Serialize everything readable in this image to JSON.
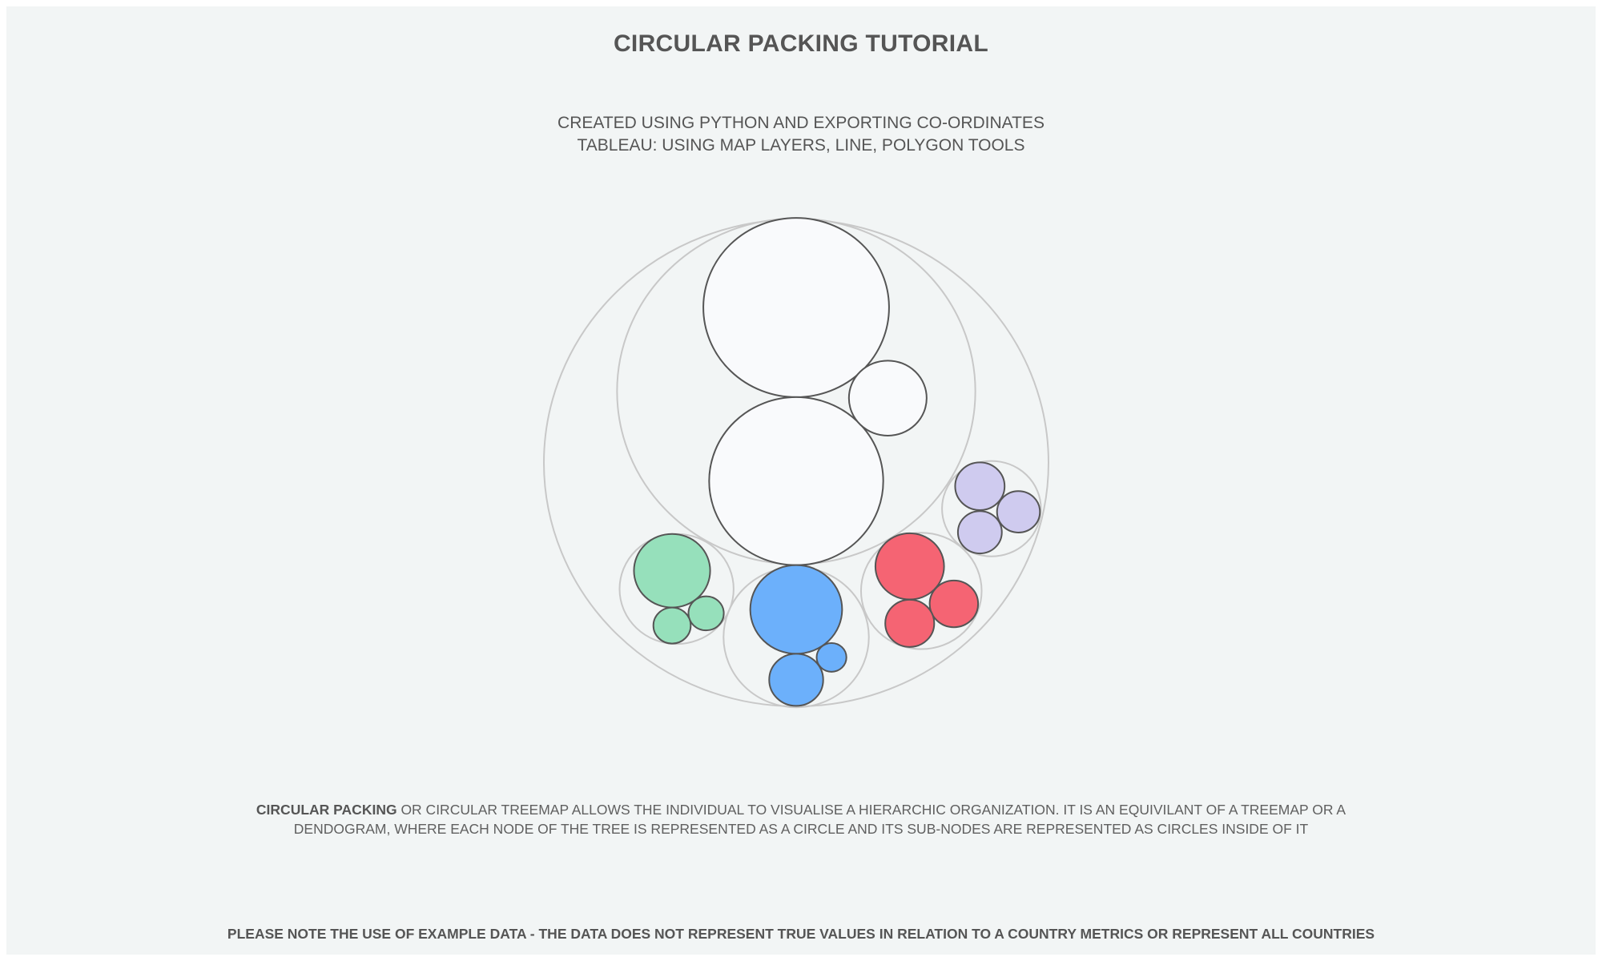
{
  "header": {
    "title": "CIRCULAR PACKING TUTORIAL",
    "subtitle_line1": "CREATED USING PYTHON AND EXPORTING CO-ORDINATES",
    "subtitle_line2": "TABLEAU: USING MAP LAYERS, LINE, POLYGON TOOLS"
  },
  "description": {
    "bold_lead": "CIRCULAR PACKING",
    "line1_rest": " OR CIRCULAR TREEMAP ALLOWS THE INDIVIDUAL TO VISUALISE A HIERARCHIC ORGANIZATION. IT IS AN EQUIVILANT OF A TREEMAP OR A",
    "line2": "DENDOGRAM, WHERE EACH NODE OF THE TREE IS REPRESENTED AS A CIRCLE AND ITS SUB-NODES ARE REPRESENTED AS CIRCLES INSIDE OF IT"
  },
  "footer_note": "PLEASE NOTE THE USE OF EXAMPLE DATA - THE DATA DOES NOT REPRESENT TRUE VALUES IN RELATION TO A COUNTRY METRICS OR REPRESENT ALL COUNTRIES",
  "colors": {
    "background": "#f2f5f5",
    "group_outline": "#c8c8c8",
    "leaf_outline": "#555555"
  },
  "chart_data": {
    "type": "circle-packing",
    "title": "",
    "root": {
      "x": 0,
      "y": 0,
      "r": 100
    },
    "groups": [
      {
        "color": "#f9fafc",
        "x": 0,
        "y": 29.4,
        "r": 71,
        "leaves": [
          {
            "x": 0,
            "y": 63.8,
            "r": 36.8
          },
          {
            "x": 0,
            "y": -7.5,
            "r": 34.5
          },
          {
            "x": 36.3,
            "y": 26.6,
            "r": 15.4
          }
        ]
      },
      {
        "color": "#cfcbef",
        "x": 77.4,
        "y": -18.8,
        "r": 19.6,
        "leaves": [
          {
            "x": 72.8,
            "y": -9.6,
            "r": 9.8
          },
          {
            "x": 88.1,
            "y": -20.1,
            "r": 8.5
          },
          {
            "x": 72.8,
            "y": -28.5,
            "r": 8.7
          }
        ]
      },
      {
        "color": "#f56473",
        "x": 49.6,
        "y": -52.6,
        "r": 23.9,
        "leaves": [
          {
            "x": 45.0,
            "y": -42.5,
            "r": 13.6
          },
          {
            "x": 62.5,
            "y": -57.9,
            "r": 9.6
          },
          {
            "x": 45.0,
            "y": -65.9,
            "r": 9.7
          }
        ]
      },
      {
        "color": "#6cb0fb",
        "x": 0,
        "y": -71.6,
        "r": 28.8,
        "leaves": [
          {
            "x": 0,
            "y": -60.2,
            "r": 18.2
          },
          {
            "x": 0,
            "y": -89.1,
            "r": 10.7
          },
          {
            "x": 14.0,
            "y": -79.9,
            "r": 5.9
          }
        ]
      },
      {
        "color": "#96e0bb",
        "x": -47.4,
        "y": -51.8,
        "r": 22.6,
        "leaves": [
          {
            "x": -49.2,
            "y": -44.3,
            "r": 15.1
          },
          {
            "x": -35.7,
            "y": -61.8,
            "r": 7.0
          },
          {
            "x": -49.2,
            "y": -66.8,
            "r": 7.4
          }
        ]
      }
    ]
  }
}
